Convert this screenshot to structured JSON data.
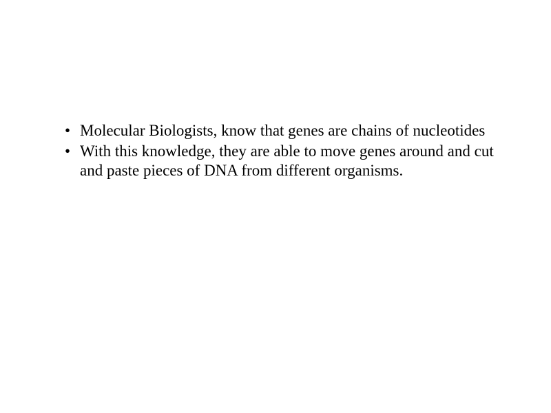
{
  "slide": {
    "background_color": "#ffffff",
    "text_color": "#000000",
    "font_family": "Times New Roman",
    "font_size_pt": 17,
    "bullets": [
      "Molecular Biologists, know that genes are chains of nucleotides",
      "With this knowledge, they are able to move genes around and cut and paste pieces of DNA from different organisms."
    ]
  }
}
